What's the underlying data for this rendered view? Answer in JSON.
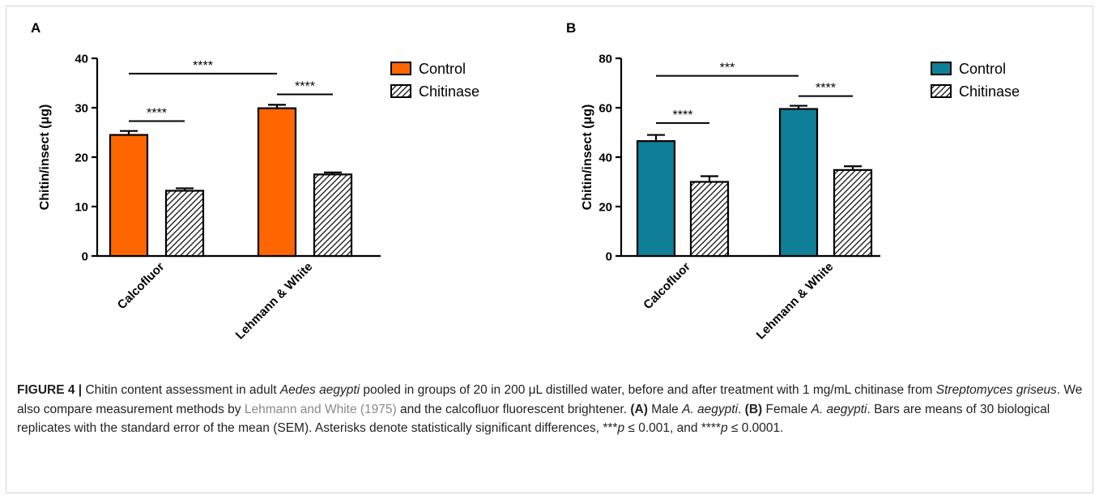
{
  "colors": {
    "control_A": "#ff6600",
    "control_B": "#0e7f96",
    "axis": "#000000",
    "caption_link": "#8a8a8a"
  },
  "chart_data": [
    {
      "type": "bar",
      "panel_label": "A",
      "categories": [
        "Calcofluor",
        "Lehmann & White"
      ],
      "series": [
        {
          "name": "Control",
          "values": [
            24.5,
            29.9
          ],
          "errors": [
            0.8,
            0.7
          ],
          "fill": "#ff6600",
          "pattern": "solid"
        },
        {
          "name": "Chitinase",
          "values": [
            13.2,
            16.5
          ],
          "errors": [
            0.5,
            0.4
          ],
          "fill": "hatch",
          "pattern": "hatch"
        }
      ],
      "ylabel": "Chitin/insect (μg)",
      "xlabel": "",
      "ylim": [
        0,
        40
      ],
      "yticks": [
        0,
        10,
        20,
        30,
        40
      ],
      "legend_position": "right",
      "grid": false,
      "significance": [
        {
          "label": "****",
          "from": "Calcofluor:Control",
          "to": "Calcofluor:Chitinase",
          "y": 27.3
        },
        {
          "label": "****",
          "from": "Lehmann & White:Control",
          "to": "Lehmann & White:Chitinase",
          "y": 32.7
        },
        {
          "label": "****",
          "from": "Calcofluor:Control",
          "to": "Lehmann & White:Control",
          "y": 36.9
        }
      ]
    },
    {
      "type": "bar",
      "panel_label": "B",
      "categories": [
        "Calcofluor",
        "Lehmann & White"
      ],
      "series": [
        {
          "name": "Control",
          "values": [
            46.5,
            59.5
          ],
          "errors": [
            2.5,
            1.3
          ],
          "fill": "#0e7f96",
          "pattern": "solid"
        },
        {
          "name": "Chitinase",
          "values": [
            30.0,
            34.8
          ],
          "errors": [
            2.3,
            1.5
          ],
          "fill": "hatch",
          "pattern": "hatch"
        }
      ],
      "ylabel": "Chitin/insect (μg)",
      "xlabel": "",
      "ylim": [
        0,
        80
      ],
      "yticks": [
        0,
        20,
        40,
        60,
        80
      ],
      "legend_position": "right",
      "grid": false,
      "significance": [
        {
          "label": "****",
          "from": "Calcofluor:Control",
          "to": "Calcofluor:Chitinase",
          "y": 53.8
        },
        {
          "label": "****",
          "from": "Lehmann & White:Control",
          "to": "Lehmann & White:Chitinase",
          "y": 64.7
        },
        {
          "label": "***",
          "from": "Calcofluor:Control",
          "to": "Lehmann & White:Control",
          "y": 72.9
        }
      ]
    }
  ],
  "caption": {
    "figure_label": "FIGURE 4 |",
    "t1": " Chitin content assessment in adult ",
    "t1_italic": "Aedes aegypti",
    "t2": " pooled in groups of 20 in 200 μL distilled water, before and after treatment with 1 mg/mL chitinase from ",
    "t2_italic": "Streptomyces griseus",
    "t3": ". We also compare measurement methods by ",
    "ref_link": "Lehmann and White (1975)",
    "t4": " and the calcofluor fluorescent brightener. ",
    "panel_a_label": "(A)",
    "t5": " Male ",
    "t5_italic": "A. aegypti",
    "t6": ". ",
    "panel_b_label": "(B)",
    "t7": " Female ",
    "t7_italic": "A. aegypti",
    "t8": ". Bars are means of 30 biological replicates with the standard error of the mean (SEM). Asterisks denote statistically significant differences, ",
    "t9": "***",
    "t9_italic": "p",
    "t10": " ≤ 0.001, and ",
    "t11": "****",
    "t11_italic": "p",
    "t12": " ≤ 0.0001."
  }
}
